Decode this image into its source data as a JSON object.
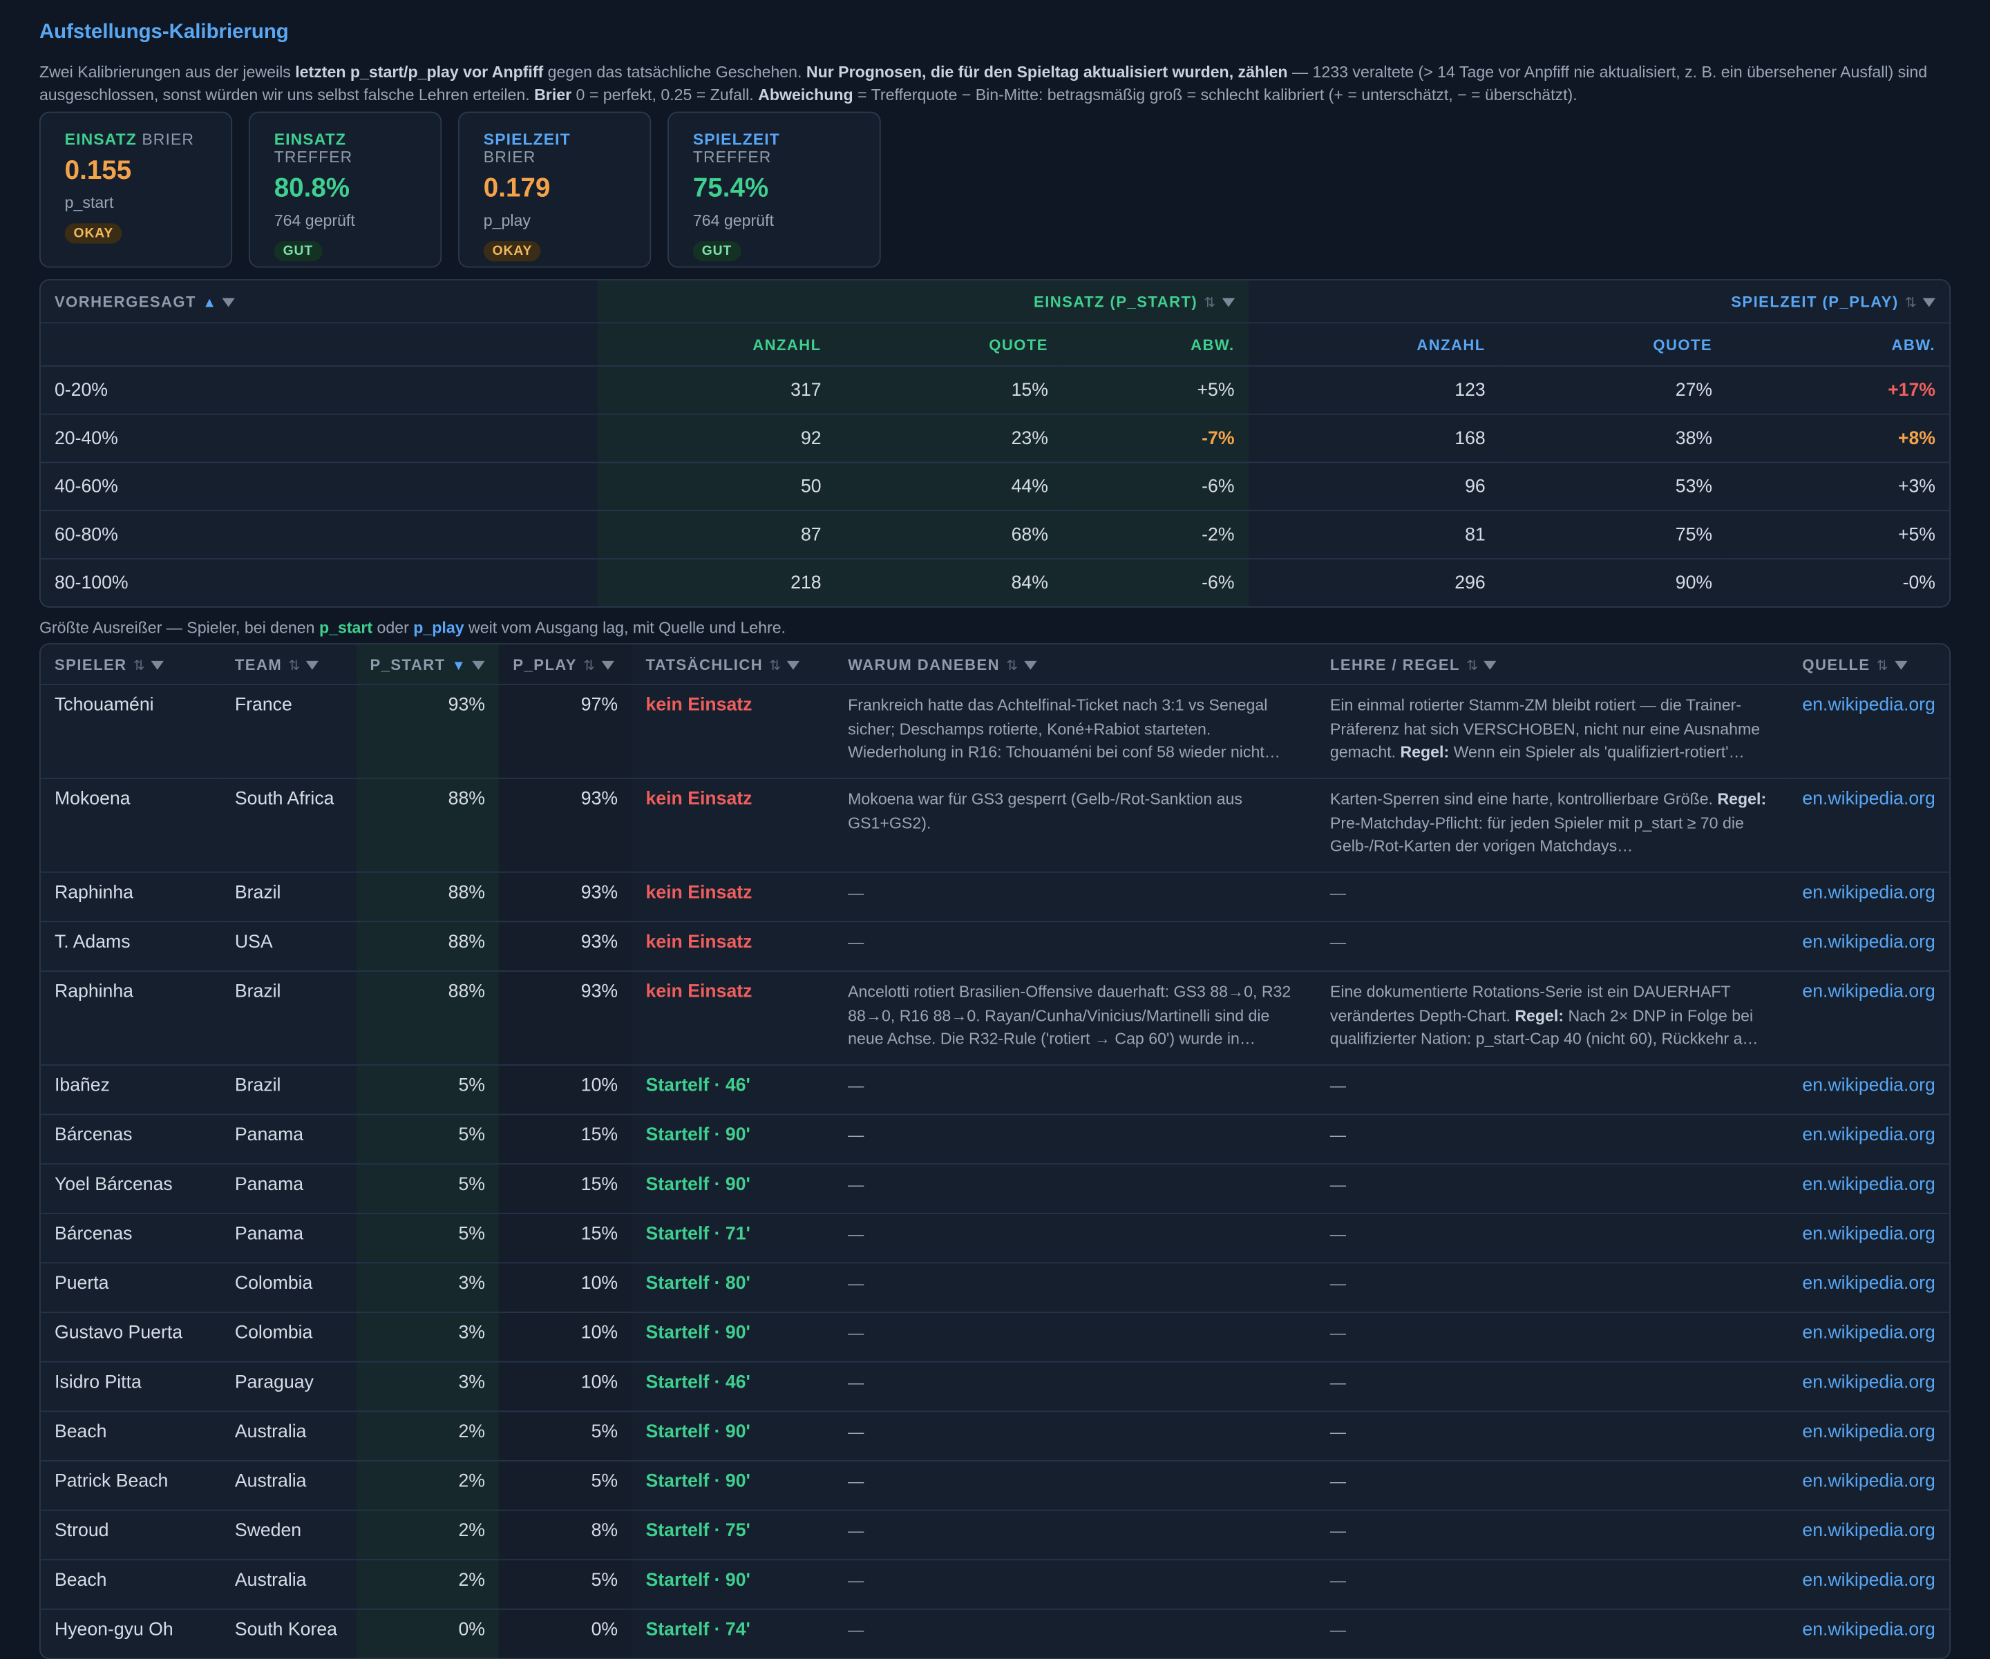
{
  "title": "Aufstellungs-Kalibrierung",
  "description": {
    "p1": "Zwei Kalibrierungen aus der jeweils ",
    "b1": "letzten p_start/p_play vor Anpfiff",
    "p2": " gegen das tatsächliche Geschehen. ",
    "b2": "Nur Prognosen, die für den Spieltag aktualisiert wurden, zählen",
    "p3": " — 1233 veraltete (> 14 Tage vor Anpfiff nie aktualisiert, z. B. ein übersehener Ausfall) sind ausgeschlossen, sonst würden wir uns selbst falsche Lehren erteilen. ",
    "b3": "Brier",
    "p4": " 0 = perfekt, 0.25 = Zufall. ",
    "b4": "Abweichung",
    "p5": " = Trefferquote − Bin-Mitte: betragsmäßig groß = schlecht kalibriert (+ = unterschätzt, − = überschätzt)."
  },
  "cards": [
    {
      "key": "EINSATZ",
      "rest": "BRIER",
      "value": "0.155",
      "sub": "p_start",
      "badge": "OKAY"
    },
    {
      "key": "EINSATZ",
      "rest": "TREFFER",
      "value": "80.8%",
      "sub": "764 geprüft",
      "badge": "GUT"
    },
    {
      "key": "SPIELZEIT",
      "rest": "BRIER",
      "value": "0.179",
      "sub": "p_play",
      "badge": "OKAY"
    },
    {
      "key": "SPIELZEIT",
      "rest": "TREFFER",
      "value": "75.4%",
      "sub": "764 geprüft",
      "badge": "GUT"
    }
  ],
  "colors": {
    "einsatz": "#3fcf8e",
    "spielzeit": "#58a6f5",
    "okay": "#f5a34a",
    "bad": "#ef5e5c"
  },
  "calibration": {
    "col_predicted": "VORHERGESAGT",
    "group_einsatz": "EINSATZ (P_START)",
    "group_spielzeit": "SPIELZEIT (P_PLAY)",
    "sub_anzahl": "ANZAHL",
    "sub_quote": "QUOTE",
    "sub_abw": "ABW.",
    "rows": [
      {
        "bin": "0-20%",
        "e_n": "317",
        "e_q": "15%",
        "e_a": "+5%",
        "p_n": "123",
        "p_q": "27%",
        "p_a": "+17%"
      },
      {
        "bin": "20-40%",
        "e_n": "92",
        "e_q": "23%",
        "e_a": "-7%",
        "p_n": "168",
        "p_q": "38%",
        "p_a": "+8%"
      },
      {
        "bin": "40-60%",
        "e_n": "50",
        "e_q": "44%",
        "e_a": "-6%",
        "p_n": "96",
        "p_q": "53%",
        "p_a": "+3%"
      },
      {
        "bin": "60-80%",
        "e_n": "87",
        "e_q": "68%",
        "e_a": "-2%",
        "p_n": "81",
        "p_q": "75%",
        "p_a": "+5%"
      },
      {
        "bin": "80-100%",
        "e_n": "218",
        "e_q": "84%",
        "e_a": "-6%",
        "p_n": "296",
        "p_q": "90%",
        "p_a": "-0%"
      }
    ]
  },
  "outliers_caption": {
    "p1": "Größte Ausreißer — Spieler, bei denen ",
    "k1": "p_start",
    "p2": " oder ",
    "k2": "p_play",
    "p3": " weit vom Ausgang lag, mit Quelle und Lehre."
  },
  "outliers": {
    "headers": {
      "spieler": "SPIELER",
      "team": "TEAM",
      "p_start": "P_START",
      "p_play": "P_PLAY",
      "actual": "TATSÄCHLICH",
      "why": "WARUM DANEBEN",
      "lesson": "LEHRE / REGEL",
      "source": "QUELLE"
    },
    "rows": [
      {
        "player": "Tchouaméni",
        "team": "France",
        "ps": "93%",
        "pp": "97%",
        "actual": "kein Einsatz",
        "ok": false,
        "why": "Frankreich hatte das Achtelfinal-Ticket nach 3:1 vs Senegal sicher; Deschamps rotierte, Koné+Rabiot starteten. Wiederholung in R16: Tchouaméni bei conf 58 wieder nicht…",
        "lesson_a": "Ein einmal rotierter Stamm-ZM bleibt rotiert — die Trainer-Präferenz hat sich VERSCHOBEN, nicht nur eine Ausnahme gemacht. ",
        "lesson_b": "Regel:",
        "lesson_c": " Wenn ein Spieler als 'qualifiziert-rotiert'…",
        "source": "en.wikipedia.org"
      },
      {
        "player": "Mokoena",
        "team": "South Africa",
        "ps": "88%",
        "pp": "93%",
        "actual": "kein Einsatz",
        "ok": false,
        "why": "Mokoena war für GS3 gesperrt (Gelb-/Rot-Sanktion aus GS1+GS2).",
        "lesson_a": "Karten-Sperren sind eine harte, kontrollierbare Größe. ",
        "lesson_b": "Regel:",
        "lesson_c": " Pre-Matchday-Pflicht: für jeden Spieler mit p_start ≥ 70 die Gelb-/Rot-Karten der vorigen Matchdays…",
        "source": "en.wikipedia.org"
      },
      {
        "player": "Raphinha",
        "team": "Brazil",
        "ps": "88%",
        "pp": "93%",
        "actual": "kein Einsatz",
        "ok": false,
        "why": "—",
        "lesson_a": "—",
        "lesson_b": "",
        "lesson_c": "",
        "source": "en.wikipedia.org"
      },
      {
        "player": "T. Adams",
        "team": "USA",
        "ps": "88%",
        "pp": "93%",
        "actual": "kein Einsatz",
        "ok": false,
        "why": "—",
        "lesson_a": "—",
        "lesson_b": "",
        "lesson_c": "",
        "source": "en.wikipedia.org"
      },
      {
        "player": "Raphinha",
        "team": "Brazil",
        "ps": "88%",
        "pp": "93%",
        "actual": "kein Einsatz",
        "ok": false,
        "why": "Ancelotti rotiert Brasilien-Offensive dauerhaft: GS3 88→0, R32 88→0, R16 88→0. Rayan/Cunha/Vinicius/Martinelli sind die neue Achse. Die R32-Rule ('rotiert → Cap 60') wurde in…",
        "lesson_a": "Eine dokumentierte Rotations-Serie ist ein DAUERHAFT verändertes Depth-Chart. ",
        "lesson_b": "Regel:",
        "lesson_c": " Nach 2× DNP in Folge bei qualifizierter Nation: p_start-Cap 40 (nicht 60), Rückkehr a…",
        "source": "en.wikipedia.org"
      },
      {
        "player": "Ibañez",
        "team": "Brazil",
        "ps": "5%",
        "pp": "10%",
        "actual": "Startelf · 46'",
        "ok": true,
        "why": "—",
        "lesson_a": "—",
        "lesson_b": "",
        "lesson_c": "",
        "source": "en.wikipedia.org"
      },
      {
        "player": "Bárcenas",
        "team": "Panama",
        "ps": "5%",
        "pp": "15%",
        "actual": "Startelf · 90'",
        "ok": true,
        "why": "—",
        "lesson_a": "—",
        "lesson_b": "",
        "lesson_c": "",
        "source": "en.wikipedia.org"
      },
      {
        "player": "Yoel Bárcenas",
        "team": "Panama",
        "ps": "5%",
        "pp": "15%",
        "actual": "Startelf · 90'",
        "ok": true,
        "why": "—",
        "lesson_a": "—",
        "lesson_b": "",
        "lesson_c": "",
        "source": "en.wikipedia.org"
      },
      {
        "player": "Bárcenas",
        "team": "Panama",
        "ps": "5%",
        "pp": "15%",
        "actual": "Startelf · 71'",
        "ok": true,
        "why": "—",
        "lesson_a": "—",
        "lesson_b": "",
        "lesson_c": "",
        "source": "en.wikipedia.org"
      },
      {
        "player": "Puerta",
        "team": "Colombia",
        "ps": "3%",
        "pp": "10%",
        "actual": "Startelf · 80'",
        "ok": true,
        "why": "—",
        "lesson_a": "—",
        "lesson_b": "",
        "lesson_c": "",
        "source": "en.wikipedia.org"
      },
      {
        "player": "Gustavo Puerta",
        "team": "Colombia",
        "ps": "3%",
        "pp": "10%",
        "actual": "Startelf · 90'",
        "ok": true,
        "why": "—",
        "lesson_a": "—",
        "lesson_b": "",
        "lesson_c": "",
        "source": "en.wikipedia.org"
      },
      {
        "player": "Isidro Pitta",
        "team": "Paraguay",
        "ps": "3%",
        "pp": "10%",
        "actual": "Startelf · 46'",
        "ok": true,
        "why": "—",
        "lesson_a": "—",
        "lesson_b": "",
        "lesson_c": "",
        "source": "en.wikipedia.org"
      },
      {
        "player": "Beach",
        "team": "Australia",
        "ps": "2%",
        "pp": "5%",
        "actual": "Startelf · 90'",
        "ok": true,
        "why": "—",
        "lesson_a": "—",
        "lesson_b": "",
        "lesson_c": "",
        "source": "en.wikipedia.org"
      },
      {
        "player": "Patrick Beach",
        "team": "Australia",
        "ps": "2%",
        "pp": "5%",
        "actual": "Startelf · 90'",
        "ok": true,
        "why": "—",
        "lesson_a": "—",
        "lesson_b": "",
        "lesson_c": "",
        "source": "en.wikipedia.org"
      },
      {
        "player": "Stroud",
        "team": "Sweden",
        "ps": "2%",
        "pp": "8%",
        "actual": "Startelf · 75'",
        "ok": true,
        "why": "—",
        "lesson_a": "—",
        "lesson_b": "",
        "lesson_c": "",
        "source": "en.wikipedia.org"
      },
      {
        "player": "Beach",
        "team": "Australia",
        "ps": "2%",
        "pp": "5%",
        "actual": "Startelf · 90'",
        "ok": true,
        "why": "—",
        "lesson_a": "—",
        "lesson_b": "",
        "lesson_c": "",
        "source": "en.wikipedia.org"
      },
      {
        "player": "Hyeon-gyu Oh",
        "team": "South Korea",
        "ps": "0%",
        "pp": "0%",
        "actual": "Startelf · 74'",
        "ok": true,
        "why": "—",
        "lesson_a": "—",
        "lesson_b": "",
        "lesson_c": "",
        "source": "en.wikipedia.org"
      }
    ]
  }
}
